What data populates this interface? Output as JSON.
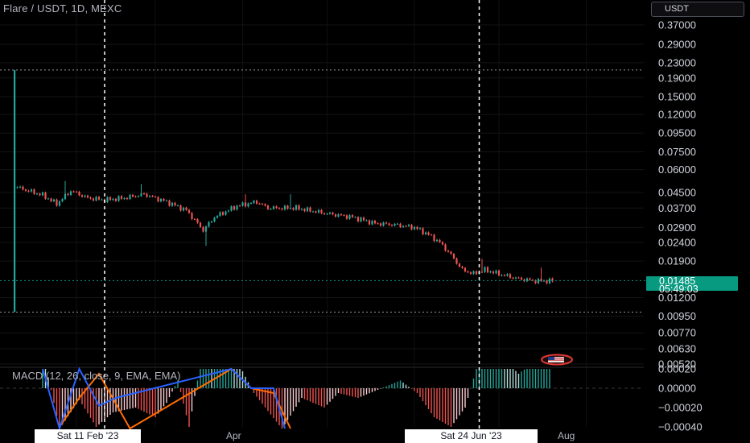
{
  "header": {
    "title": "Flare / USDT, 1D, MEXC",
    "currency_button": "USDT"
  },
  "last_price": {
    "value": "0.01485",
    "countdown": "05:49:03",
    "color": "#089981"
  },
  "crosshair_dates": [
    "Sat 11 Feb '23",
    "Sat 24 Jun '23"
  ],
  "time_axis": [
    "Apr",
    "Aug"
  ],
  "indicator": {
    "label": "MACD (12, 26, close, 9, EMA, EMA)"
  },
  "flag_icon": "us-flag-icon",
  "colors": {
    "up": "#26a69a",
    "down": "#ef5350",
    "macd_line": "#2962ff",
    "signal_line": "#ff6d00",
    "background": "#000000"
  },
  "chart_data": [
    {
      "type": "candlestick",
      "title": "Flare / USDT, 1D, MEXC",
      "y_scale": "log",
      "y_ticks": [
        0.37,
        0.29,
        0.23,
        0.19,
        0.15,
        0.12,
        0.095,
        0.075,
        0.06,
        0.045,
        0.037,
        0.029,
        0.024,
        0.019,
        0.012,
        0.0095,
        0.0077,
        0.0063,
        0.0052
      ],
      "y_tick_labels": [
        "0.37000",
        "0.29000",
        "0.23000",
        "0.19000",
        "0.15000",
        "0.12000",
        "0.09500",
        "0.07500",
        "0.06000",
        "0.04500",
        "0.03700",
        "0.02900",
        "0.02400",
        "0.01900",
        "0.01200",
        "0.00950",
        "0.00770",
        "0.00630",
        "0.00520"
      ],
      "x_range": [
        "2023-01-10",
        "2023-08-10"
      ],
      "first_candle": {
        "date": "2023-01-10",
        "open": 0.01,
        "high": 0.21,
        "low": 0.01,
        "close": 0.21
      },
      "anchors": [
        [
          "2023-01-11",
          0.048
        ],
        [
          "2023-01-20",
          0.0435
        ],
        [
          "2023-01-25",
          0.039
        ],
        [
          "2023-01-30",
          0.046
        ],
        [
          "2023-02-05",
          0.042
        ],
        [
          "2023-02-11",
          0.041
        ],
        [
          "2023-02-18",
          0.042
        ],
        [
          "2023-02-25",
          0.044
        ],
        [
          "2023-03-05",
          0.04
        ],
        [
          "2023-03-12",
          0.036
        ],
        [
          "2023-03-18",
          0.028
        ],
        [
          "2023-03-22",
          0.033
        ],
        [
          "2023-03-30",
          0.038
        ],
        [
          "2023-04-06",
          0.04
        ],
        [
          "2023-04-10",
          0.037
        ],
        [
          "2023-04-20",
          0.037
        ],
        [
          "2023-05-01",
          0.0345
        ],
        [
          "2023-05-10",
          0.033
        ],
        [
          "2023-05-18",
          0.0305
        ],
        [
          "2023-05-25",
          0.03
        ],
        [
          "2023-06-01",
          0.029
        ],
        [
          "2023-06-06",
          0.0265
        ],
        [
          "2023-06-10",
          0.024
        ],
        [
          "2023-06-14",
          0.0205
        ],
        [
          "2023-06-18",
          0.017
        ],
        [
          "2023-06-22",
          0.0162
        ],
        [
          "2023-06-26",
          0.017
        ],
        [
          "2023-07-02",
          0.016
        ],
        [
          "2023-07-08",
          0.0152
        ],
        [
          "2023-07-14",
          0.0148
        ],
        [
          "2023-07-20",
          0.0148
        ]
      ],
      "wicks": [
        {
          "date": "2023-01-28",
          "high": 0.052
        },
        {
          "date": "2023-02-24",
          "high": 0.05
        },
        {
          "date": "2023-03-19",
          "low": 0.023
        },
        {
          "date": "2023-04-02",
          "high": 0.044
        },
        {
          "date": "2023-04-18",
          "high": 0.044
        },
        {
          "date": "2023-06-25",
          "high": 0.0195
        },
        {
          "date": "2023-07-16",
          "high": 0.0175
        }
      ]
    },
    {
      "type": "macd",
      "label": "MACD (12, 26, close, 9, EMA, EMA)",
      "y_ticks": [
        0.0002,
        0.0,
        -0.0002,
        -0.0004
      ],
      "y_tick_labels": [
        "0.00020",
        "0.00000",
        "−0.00020",
        "−0.00040"
      ],
      "histogram_anchors": [
        [
          "2023-01-20",
          0.00038
        ],
        [
          "2023-01-26",
          -0.00042
        ],
        [
          "2023-02-02",
          -0.00012
        ],
        [
          "2023-02-08",
          -0.0004
        ],
        [
          "2023-02-14",
          -0.00025
        ],
        [
          "2023-02-22",
          -0.0002
        ],
        [
          "2023-03-01",
          -0.0003
        ],
        [
          "2023-03-05",
          -0.00015
        ],
        [
          "2023-03-09",
          8e-05
        ],
        [
          "2023-03-13",
          -0.0004
        ],
        [
          "2023-03-18",
          0.0004
        ],
        [
          "2023-03-28",
          0.0004
        ],
        [
          "2023-04-05",
          -5e-05
        ],
        [
          "2023-04-15",
          -0.00042
        ],
        [
          "2023-04-22",
          -0.0001
        ],
        [
          "2023-04-30",
          -0.0002
        ],
        [
          "2023-05-05",
          -5e-05
        ],
        [
          "2023-05-12",
          -0.0001
        ],
        [
          "2023-05-22",
          2e-05
        ],
        [
          "2023-05-27",
          8e-05
        ],
        [
          "2023-06-02",
          -5e-05
        ],
        [
          "2023-06-08",
          -0.0003
        ],
        [
          "2023-06-14",
          -0.0004
        ],
        [
          "2023-06-19",
          -0.0002
        ],
        [
          "2023-06-24",
          0.0003
        ],
        [
          "2023-07-02",
          0.00032
        ],
        [
          "2023-07-08",
          0.00015
        ],
        [
          "2023-07-14",
          0.00028
        ],
        [
          "2023-07-19",
          0.00035
        ]
      ],
      "macd_line": [
        [
          "2023-01-20",
          0.0004
        ],
        [
          "2023-01-26",
          -0.00045
        ],
        [
          "2023-02-02",
          0.0002
        ],
        [
          "2023-02-09",
          -0.00018
        ],
        [
          "2023-02-15",
          -0.0001
        ],
        [
          "2023-03-28",
          0.0004
        ],
        [
          "2023-04-04",
          0.0
        ],
        [
          "2023-04-12",
          0.0
        ],
        [
          "2023-04-16",
          -0.00045
        ]
      ],
      "signal_line": [
        [
          "2023-01-26",
          -0.0004
        ],
        [
          "2023-02-02",
          -0.0001
        ],
        [
          "2023-02-09",
          0.00015
        ],
        [
          "2023-02-20",
          -0.00045
        ],
        [
          "2023-03-28",
          0.0004
        ],
        [
          "2023-04-04",
          0.0
        ],
        [
          "2023-04-12",
          -5e-05
        ],
        [
          "2023-04-18",
          -0.00045
        ]
      ]
    }
  ]
}
